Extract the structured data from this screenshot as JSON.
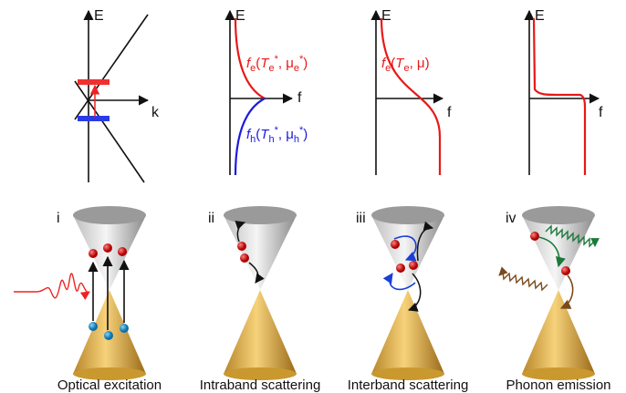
{
  "panels": [
    {
      "label": "i",
      "caption": "Optical excitation",
      "axes": {
        "y": "E",
        "x": "k"
      }
    },
    {
      "label": "ii",
      "caption": "Intraband scattering",
      "axes": {
        "y": "E",
        "x": "f"
      },
      "formulas": [
        [
          "f",
          "e",
          "(",
          "T",
          "e",
          "*",
          ", μ",
          "e",
          "*",
          ")"
        ],
        [
          "f",
          "h",
          "(",
          "T",
          "h",
          "*",
          ", μ",
          "h",
          "*",
          ")"
        ]
      ]
    },
    {
      "label": "iii",
      "caption": "Interband scattering",
      "axes": {
        "y": "E",
        "x": "f"
      },
      "formulas": [
        [
          "f",
          "e",
          "(",
          "T",
          "e",
          ", μ)"
        ]
      ]
    },
    {
      "label": "iv",
      "caption": "Phonon emission",
      "axes": {
        "y": "E",
        "x": "f"
      }
    }
  ]
}
